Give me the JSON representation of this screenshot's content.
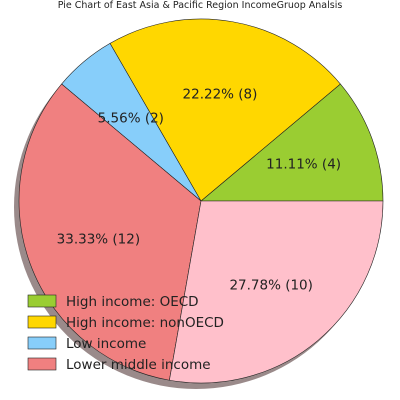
{
  "chart_data": {
    "type": "pie",
    "title": "Pie Chart of East Asia & Pacific Region IncomeGruop Analsis",
    "slices": [
      {
        "name": "High income: OECD",
        "count": 4,
        "percent": 11.11,
        "label": "11.11%  (4)",
        "color": "#9acd32",
        "in_legend": true
      },
      {
        "name": "High income: nonOECD",
        "count": 8,
        "percent": 22.22,
        "label": "22.22%  (8)",
        "color": "#ffd700",
        "in_legend": true
      },
      {
        "name": "Low income",
        "count": 2,
        "percent": 5.56,
        "label": "5.56%  (2)",
        "color": "#87cefa",
        "in_legend": true
      },
      {
        "name": "Lower middle income",
        "count": 12,
        "percent": 33.33,
        "label": "33.33%  (12)",
        "color": "#f08080",
        "in_legend": true
      },
      {
        "name": "",
        "count": 10,
        "percent": 27.78,
        "label": "27.78%  (10)",
        "color": "#ffc0cb",
        "in_legend": false
      }
    ],
    "legend_position": "lower-left",
    "shadow": true,
    "start_angle_deg": 0,
    "direction": "counterclockwise"
  }
}
